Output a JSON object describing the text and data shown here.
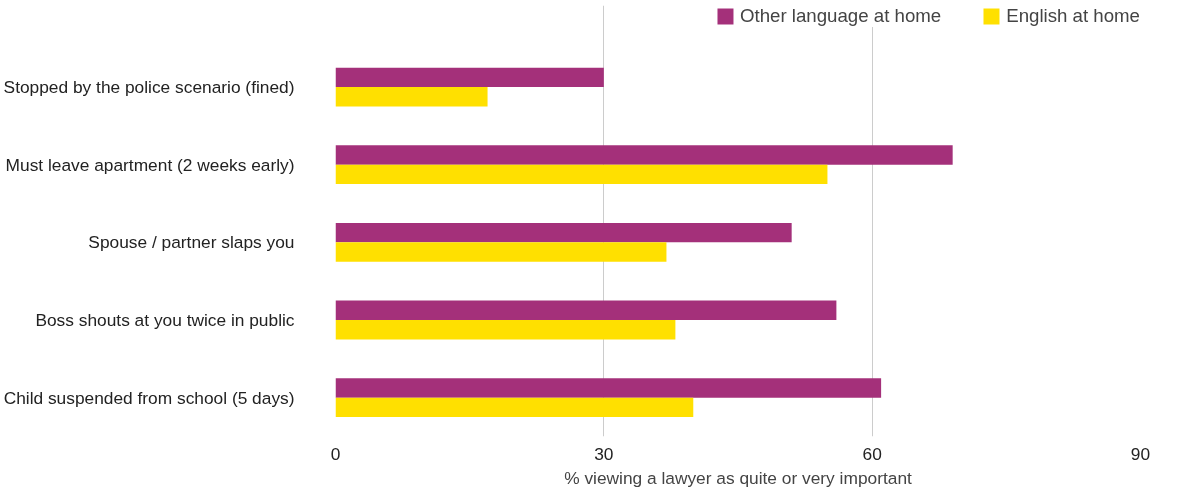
{
  "chart_data": {
    "type": "bar",
    "orientation": "horizontal",
    "xlabel": "% viewing a lawyer as quite or very important",
    "categories": [
      "Stopped by the police scenario (fined)",
      "Must leave apartment (2 weeks early)",
      "Spouse / partner slaps you",
      "Boss shouts at you twice in public",
      "Child suspended from school (5 days)"
    ],
    "series": [
      {
        "name": "Other language at home",
        "color": "#a4307a",
        "values": [
          30,
          69,
          51,
          56,
          61
        ]
      },
      {
        "name": "English at home",
        "color": "#ffe000",
        "values": [
          17,
          55,
          37,
          38,
          40
        ]
      }
    ],
    "xlim": [
      0,
      90
    ],
    "xticks": [
      0,
      30,
      60,
      90
    ],
    "grid": "x",
    "legend": "top right"
  }
}
